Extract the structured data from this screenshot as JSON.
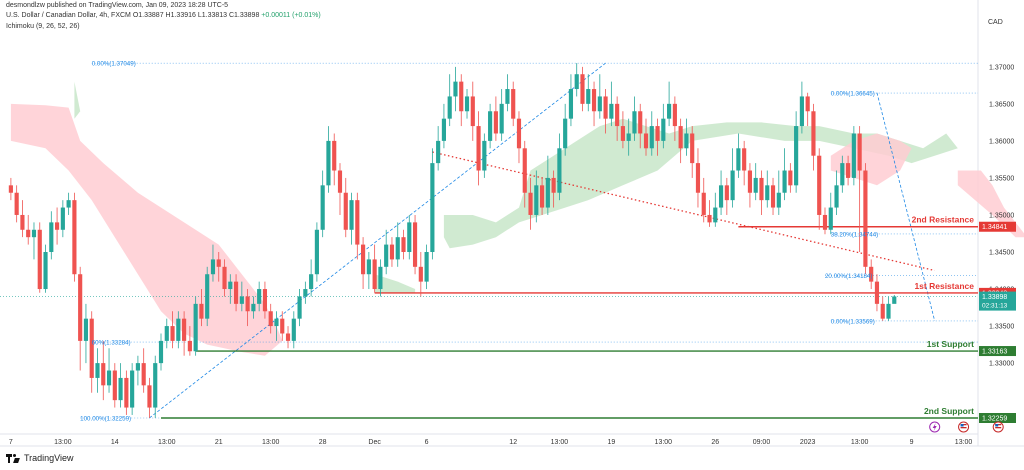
{
  "header": {
    "line1_pub": "desmondlzw published on TradingView.com, Jan 09, 2023 18:28 UTC-5",
    "symbol": "U.S. Dollar / Canadian Dollar, 4h, FXCM",
    "ohlc": "O1.33887 H1.33916 L1.33813 C1.33898",
    "change": "+0.00011 (+0.01%)",
    "indicator": "Ichimoku (9, 26, 52, 26)"
  },
  "currency": "CAD",
  "footer": {
    "brand": "TradingView"
  },
  "colors": {
    "up": "#26a69a",
    "down": "#ef5350",
    "resistance": "#e53935",
    "support": "#2e7d32",
    "fib": "#1e88e5",
    "trend": "#e53935",
    "cloud_bull": "#c8e6c9",
    "cloud_bear": "#ffcdd2"
  },
  "chart_data": {
    "type": "candlestick",
    "y_ticks": [
      "1.37000",
      "1.36500",
      "1.36000",
      "1.35500",
      "1.35000",
      "1.34500",
      "1.34000",
      "1.33500",
      "1.33000"
    ],
    "ylim": [
      1.3207,
      1.3747
    ],
    "x_ticks": [
      {
        "label": "7",
        "i": 0
      },
      {
        "label": "13:00",
        "i": 9
      },
      {
        "label": "14",
        "i": 18
      },
      {
        "label": "13:00",
        "i": 27
      },
      {
        "label": "21",
        "i": 36
      },
      {
        "label": "13:00",
        "i": 45
      },
      {
        "label": "28",
        "i": 54
      },
      {
        "label": "Dec",
        "i": 63
      },
      {
        "label": "6",
        "i": 72
      },
      {
        "label": "12",
        "i": 87
      },
      {
        "label": "13:00",
        "i": 95
      },
      {
        "label": "19",
        "i": 104
      },
      {
        "label": "13:00",
        "i": 113
      },
      {
        "label": "26",
        "i": 122
      },
      {
        "label": "09:00",
        "i": 130
      },
      {
        "label": "2023",
        "i": 138
      },
      {
        "label": "13:00",
        "i": 147
      },
      {
        "label": "9",
        "i": 156
      },
      {
        "label": "13:00",
        "i": 165
      }
    ],
    "levels": [
      {
        "name": "2nd Resistance",
        "price": 1.34841,
        "tag": "1.34841",
        "kind": "resistance",
        "from_i": 126
      },
      {
        "name": "1st Resistance",
        "price": 1.33948,
        "tag": "1.33948",
        "kind": "resistance",
        "from_i": 63
      },
      {
        "name": "1st Support",
        "price": 1.33163,
        "tag": "1.33163",
        "kind": "support",
        "from_i": 32
      },
      {
        "name": "2nd Support",
        "price": 1.32259,
        "tag": "1.32259",
        "kind": "support",
        "from_i": 26
      }
    ],
    "current": {
      "price": 1.33898,
      "tag": "1.33898",
      "timer": "02:31:13"
    },
    "fib_labels": [
      {
        "text": "0.00%(1.37049)",
        "price": 1.37049,
        "i": 14
      },
      {
        "text": "60%(1.33284)",
        "price": 1.33284,
        "i": 14
      },
      {
        "text": "100.00%(1.32259)",
        "price": 1.32259,
        "i": 12
      },
      {
        "text": "0.00%(1.36645)",
        "price": 1.36645,
        "i": 142
      },
      {
        "text": "38.20%(1.34744)",
        "price": 1.34744,
        "i": 142
      },
      {
        "text": "20.00%(1.34184)",
        "price": 1.34184,
        "i": 141
      },
      {
        "text": "0.00%(1.33569)",
        "price": 1.33569,
        "i": 142
      }
    ],
    "candles": [
      [
        1.354,
        1.353,
        1.355,
        1.352
      ],
      [
        1.353,
        1.35,
        1.354,
        1.349
      ],
      [
        1.35,
        1.348,
        1.352,
        1.347
      ],
      [
        1.348,
        1.347,
        1.35,
        1.346
      ],
      [
        1.347,
        1.348,
        1.349,
        1.344
      ],
      [
        1.348,
        1.34,
        1.349,
        1.3395
      ],
      [
        1.34,
        1.345,
        1.346,
        1.3395
      ],
      [
        1.345,
        1.349,
        1.3505,
        1.344
      ],
      [
        1.349,
        1.348,
        1.351,
        1.346
      ],
      [
        1.348,
        1.351,
        1.352,
        1.347
      ],
      [
        1.351,
        1.352,
        1.353,
        1.35
      ],
      [
        1.352,
        1.342,
        1.353,
        1.341
      ],
      [
        1.342,
        1.333,
        1.343,
        1.329
      ],
      [
        1.333,
        1.336,
        1.338,
        1.33
      ],
      [
        1.336,
        1.328,
        1.337,
        1.326
      ],
      [
        1.328,
        1.33,
        1.332,
        1.326
      ],
      [
        1.33,
        1.327,
        1.333,
        1.325
      ],
      [
        1.327,
        1.329,
        1.332,
        1.326
      ],
      [
        1.329,
        1.325,
        1.33,
        1.324
      ],
      [
        1.325,
        1.328,
        1.33,
        1.324
      ],
      [
        1.328,
        1.324,
        1.329,
        1.323
      ],
      [
        1.324,
        1.329,
        1.33,
        1.323
      ],
      [
        1.329,
        1.33,
        1.331,
        1.327
      ],
      [
        1.33,
        1.327,
        1.332,
        1.326
      ],
      [
        1.327,
        1.324,
        1.328,
        1.3226
      ],
      [
        1.324,
        1.33,
        1.331,
        1.3226
      ],
      [
        1.33,
        1.333,
        1.334,
        1.329
      ],
      [
        1.333,
        1.335,
        1.336,
        1.332
      ],
      [
        1.335,
        1.333,
        1.337,
        1.332
      ],
      [
        1.333,
        1.336,
        1.337,
        1.332
      ],
      [
        1.336,
        1.333,
        1.337,
        1.331
      ],
      [
        1.333,
        1.3316,
        1.335,
        1.331
      ],
      [
        1.3316,
        1.338,
        1.339,
        1.331
      ],
      [
        1.338,
        1.336,
        1.34,
        1.335
      ],
      [
        1.336,
        1.342,
        1.343,
        1.335
      ],
      [
        1.342,
        1.344,
        1.346,
        1.341
      ],
      [
        1.344,
        1.343,
        1.345,
        1.341
      ],
      [
        1.343,
        1.34,
        1.344,
        1.339
      ],
      [
        1.34,
        1.341,
        1.342,
        1.338
      ],
      [
        1.341,
        1.338,
        1.342,
        1.337
      ],
      [
        1.338,
        1.339,
        1.341,
        1.337
      ],
      [
        1.339,
        1.337,
        1.34,
        1.335
      ],
      [
        1.337,
        1.338,
        1.339,
        1.336
      ],
      [
        1.338,
        1.34,
        1.341,
        1.337
      ],
      [
        1.34,
        1.337,
        1.341,
        1.336
      ],
      [
        1.337,
        1.335,
        1.338,
        1.334
      ],
      [
        1.335,
        1.336,
        1.337,
        1.333
      ],
      [
        1.336,
        1.334,
        1.337,
        1.333
      ],
      [
        1.334,
        1.333,
        1.335,
        1.332
      ],
      [
        1.333,
        1.336,
        1.337,
        1.332
      ],
      [
        1.336,
        1.339,
        1.34,
        1.335
      ],
      [
        1.339,
        1.34,
        1.341,
        1.338
      ],
      [
        1.34,
        1.342,
        1.344,
        1.339
      ],
      [
        1.342,
        1.348,
        1.349,
        1.341
      ],
      [
        1.348,
        1.354,
        1.356,
        1.347
      ],
      [
        1.354,
        1.36,
        1.362,
        1.353
      ],
      [
        1.36,
        1.356,
        1.361,
        1.354
      ],
      [
        1.356,
        1.353,
        1.357,
        1.35
      ],
      [
        1.353,
        1.348,
        1.355,
        1.347
      ],
      [
        1.348,
        1.352,
        1.353,
        1.346
      ],
      [
        1.352,
        1.346,
        1.353,
        1.344
      ],
      [
        1.346,
        1.342,
        1.347,
        1.34
      ],
      [
        1.342,
        1.344,
        1.345,
        1.34
      ],
      [
        1.344,
        1.34,
        1.346,
        1.3395
      ],
      [
        1.34,
        1.343,
        1.344,
        1.339
      ],
      [
        1.343,
        1.346,
        1.348,
        1.342
      ],
      [
        1.346,
        1.344,
        1.347,
        1.343
      ],
      [
        1.344,
        1.347,
        1.349,
        1.343
      ],
      [
        1.347,
        1.345,
        1.348,
        1.344
      ],
      [
        1.345,
        1.349,
        1.35,
        1.344
      ],
      [
        1.349,
        1.343,
        1.35,
        1.342
      ],
      [
        1.343,
        1.341,
        1.345,
        1.339
      ],
      [
        1.341,
        1.345,
        1.346,
        1.34
      ],
      [
        1.345,
        1.357,
        1.359,
        1.344
      ],
      [
        1.357,
        1.36,
        1.362,
        1.356
      ],
      [
        1.36,
        1.363,
        1.365,
        1.359
      ],
      [
        1.363,
        1.366,
        1.369,
        1.362
      ],
      [
        1.366,
        1.368,
        1.37,
        1.364
      ],
      [
        1.368,
        1.364,
        1.369,
        1.362
      ],
      [
        1.364,
        1.366,
        1.367,
        1.363
      ],
      [
        1.366,
        1.362,
        1.368,
        1.36
      ],
      [
        1.362,
        1.356,
        1.364,
        1.354
      ],
      [
        1.356,
        1.36,
        1.361,
        1.355
      ],
      [
        1.36,
        1.364,
        1.365,
        1.359
      ],
      [
        1.364,
        1.361,
        1.366,
        1.36
      ],
      [
        1.361,
        1.365,
        1.367,
        1.36
      ],
      [
        1.365,
        1.367,
        1.369,
        1.364
      ],
      [
        1.367,
        1.363,
        1.368,
        1.362
      ],
      [
        1.363,
        1.359,
        1.364,
        1.357
      ],
      [
        1.359,
        1.353,
        1.36,
        1.351
      ],
      [
        1.353,
        1.35,
        1.355,
        1.348
      ],
      [
        1.35,
        1.354,
        1.356,
        1.349
      ],
      [
        1.354,
        1.351,
        1.355,
        1.35
      ],
      [
        1.351,
        1.355,
        1.358,
        1.35
      ],
      [
        1.355,
        1.353,
        1.356,
        1.351
      ],
      [
        1.353,
        1.359,
        1.361,
        1.352
      ],
      [
        1.359,
        1.363,
        1.365,
        1.358
      ],
      [
        1.363,
        1.367,
        1.369,
        1.362
      ],
      [
        1.367,
        1.369,
        1.3705,
        1.366
      ],
      [
        1.369,
        1.365,
        1.37,
        1.364
      ],
      [
        1.365,
        1.367,
        1.369,
        1.364
      ],
      [
        1.367,
        1.364,
        1.368,
        1.362
      ],
      [
        1.364,
        1.366,
        1.369,
        1.363
      ],
      [
        1.366,
        1.363,
        1.367,
        1.361
      ],
      [
        1.363,
        1.365,
        1.368,
        1.362
      ],
      [
        1.365,
        1.362,
        1.366,
        1.36
      ],
      [
        1.362,
        1.36,
        1.364,
        1.359
      ],
      [
        1.36,
        1.361,
        1.363,
        1.358
      ],
      [
        1.361,
        1.364,
        1.366,
        1.36
      ],
      [
        1.364,
        1.361,
        1.365,
        1.359
      ],
      [
        1.361,
        1.359,
        1.363,
        1.358
      ],
      [
        1.359,
        1.362,
        1.364,
        1.358
      ],
      [
        1.362,
        1.36,
        1.363,
        1.358
      ],
      [
        1.36,
        1.363,
        1.365,
        1.359
      ],
      [
        1.363,
        1.365,
        1.368,
        1.362
      ],
      [
        1.365,
        1.362,
        1.366,
        1.36
      ],
      [
        1.362,
        1.359,
        1.363,
        1.357
      ],
      [
        1.359,
        1.361,
        1.363,
        1.358
      ],
      [
        1.361,
        1.357,
        1.362,
        1.355
      ],
      [
        1.357,
        1.353,
        1.359,
        1.351
      ],
      [
        1.353,
        1.35,
        1.355,
        1.349
      ],
      [
        1.35,
        1.349,
        1.352,
        1.3484
      ],
      [
        1.349,
        1.351,
        1.353,
        1.3484
      ],
      [
        1.351,
        1.354,
        1.356,
        1.35
      ],
      [
        1.354,
        1.352,
        1.355,
        1.35
      ],
      [
        1.352,
        1.356,
        1.359,
        1.351
      ],
      [
        1.356,
        1.359,
        1.361,
        1.355
      ],
      [
        1.359,
        1.356,
        1.36,
        1.354
      ],
      [
        1.356,
        1.353,
        1.357,
        1.351
      ],
      [
        1.353,
        1.355,
        1.357,
        1.352
      ],
      [
        1.355,
        1.352,
        1.356,
        1.35
      ],
      [
        1.352,
        1.354,
        1.356,
        1.351
      ],
      [
        1.354,
        1.351,
        1.355,
        1.35
      ],
      [
        1.351,
        1.353,
        1.356,
        1.35
      ],
      [
        1.353,
        1.356,
        1.359,
        1.352
      ],
      [
        1.356,
        1.354,
        1.357,
        1.353
      ],
      [
        1.354,
        1.362,
        1.364,
        1.353
      ],
      [
        1.362,
        1.366,
        1.368,
        1.361
      ],
      [
        1.366,
        1.364,
        1.3665,
        1.362
      ],
      [
        1.364,
        1.358,
        1.365,
        1.356
      ],
      [
        1.358,
        1.35,
        1.359,
        1.348
      ],
      [
        1.35,
        1.348,
        1.351,
        1.3474
      ],
      [
        1.348,
        1.351,
        1.353,
        1.3474
      ],
      [
        1.351,
        1.354,
        1.356,
        1.35
      ],
      [
        1.354,
        1.357,
        1.358,
        1.353
      ],
      [
        1.357,
        1.355,
        1.358,
        1.354
      ],
      [
        1.355,
        1.361,
        1.362,
        1.354
      ],
      [
        1.361,
        1.356,
        1.362,
        1.345
      ],
      [
        1.356,
        1.343,
        1.357,
        1.342
      ],
      [
        1.343,
        1.341,
        1.344,
        1.34
      ],
      [
        1.341,
        1.338,
        1.342,
        1.337
      ],
      [
        1.338,
        1.336,
        1.339,
        1.3357
      ],
      [
        1.336,
        1.338,
        1.339,
        1.3357
      ],
      [
        1.338,
        1.339,
        1.3392,
        1.3381
      ]
    ]
  }
}
